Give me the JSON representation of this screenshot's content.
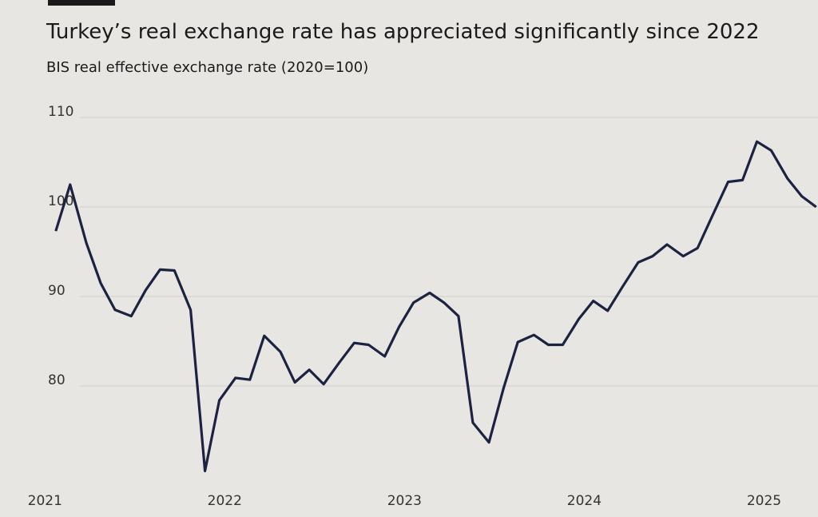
{
  "chart_data": {
    "type": "line",
    "title": "Turkey’s real exchange rate has appreciated significantly since 2022",
    "subtitle": "BIS real effective exchange rate (2020=100)",
    "x": [
      2021.06,
      2021.14,
      2021.23,
      2021.31,
      2021.39,
      2021.48,
      2021.56,
      2021.64,
      2021.72,
      2021.81,
      2021.89,
      2021.97,
      2022.06,
      2022.14,
      2022.22,
      2022.31,
      2022.39,
      2022.47,
      2022.55,
      2022.64,
      2022.72,
      2022.8,
      2022.89,
      2022.97,
      2023.05,
      2023.14,
      2023.22,
      2023.3,
      2023.38,
      2023.47,
      2023.55,
      2023.63,
      2023.72,
      2023.8,
      2023.88,
      2023.97,
      2024.05,
      2024.13,
      2024.21,
      2024.3,
      2024.38,
      2024.46,
      2024.55,
      2024.63,
      2024.71,
      2024.8,
      2024.88,
      2024.96,
      2025.04,
      2025.13,
      2025.21,
      2025.29
    ],
    "series": [
      {
        "name": "BIS real effective exchange rate",
        "color": "#1c2340",
        "values": [
          97.3,
          102.5,
          96,
          91.5,
          88.5,
          87.8,
          90.7,
          93,
          92.9,
          88.5,
          70.5,
          78.4,
          80.9,
          80.7,
          85.6,
          83.8,
          80.4,
          81.8,
          80.2,
          82.7,
          84.8,
          84.6,
          83.3,
          86.6,
          89.3,
          90.4,
          89.3,
          87.8,
          75.9,
          73.7,
          79.7,
          84.9,
          85.7,
          84.6,
          84.6,
          87.5,
          89.5,
          88.4,
          91,
          93.8,
          94.5,
          95.8,
          94.5,
          95.4,
          98.9,
          102.8,
          103,
          107.3,
          106.3,
          103.2,
          101.2,
          100
        ]
      }
    ],
    "xlim": [
      2020.75,
      2025.3
    ],
    "xticks": [
      2021,
      2022,
      2023,
      2024,
      2025
    ],
    "ylim": [
      69.5,
      113
    ],
    "yticks": [
      80,
      90,
      100,
      110
    ],
    "grid": true
  }
}
